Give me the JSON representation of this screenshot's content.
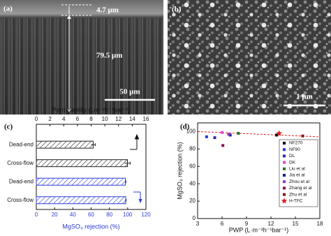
{
  "images": [
    {
      "label": "(a)",
      "annotations": [
        "4.7 μm",
        "79.5 μm",
        "50 μm"
      ]
    },
    {
      "label": "(b)",
      "annotations": [
        "1 μm"
      ]
    }
  ],
  "chart_data": [
    {
      "type": "bar",
      "orientation": "horizontal",
      "panel_label": "(c)",
      "categories": [
        "Dead-end",
        "Cross-flow",
        "Dead-end",
        "Cross-flow"
      ],
      "series": [
        {
          "color": "#222222",
          "axis": "x2",
          "values": [
            8.3,
            13.3,
            null,
            null
          ],
          "errors": [
            0.3,
            0.4,
            null,
            null
          ]
        },
        {
          "color": "#2b3bd6",
          "values": [
            null,
            null,
            97.5,
            97.8
          ],
          "errors": [
            null,
            null,
            0.6,
            0.5
          ]
        }
      ],
      "xlabel": "MgSO₄ rejection (%)",
      "xlabel_color": "#2b3bd6",
      "xlim": [
        0,
        120
      ],
      "xticks": [
        0,
        20,
        40,
        60,
        80,
        100,
        120
      ],
      "x2label": "Permeability (Lm⁻²h⁻¹bar⁻¹)",
      "x2lim": [
        0,
        16
      ],
      "x2ticks": [
        0,
        2,
        4,
        6,
        8,
        10,
        12,
        14,
        16
      ]
    },
    {
      "type": "scatter",
      "panel_label": "(d)",
      "xlabel": "PWP (L·m⁻²h⁻¹bar⁻¹)",
      "ylabel": "MgSO₄ rejection (%)",
      "xlim": [
        3,
        18
      ],
      "xticks": [
        3,
        6,
        9,
        12,
        15,
        18
      ],
      "ylim": [
        0,
        110
      ],
      "yticks": [
        0,
        20,
        40,
        60,
        80,
        100
      ],
      "legend": "right",
      "series": [
        {
          "name": "NF270",
          "color": "#000000",
          "marker": "square",
          "x": [
            12.7
          ],
          "values": [
            96
          ]
        },
        {
          "name": "NF90",
          "color": "#1f3fe0",
          "marker": "square",
          "x": [
            4.1
          ],
          "values": [
            94
          ]
        },
        {
          "name": "DL",
          "color": "#2a2aa8",
          "marker": "square",
          "x": [
            5.1
          ],
          "values": [
            93
          ]
        },
        {
          "name": "DK",
          "color": "#e040e0",
          "marker": "square",
          "x": [
            6.0
          ],
          "values": [
            99
          ]
        },
        {
          "name": "Liu et al",
          "color": "#1a7a2a",
          "marker": "square",
          "x": [
            8.0
          ],
          "values": [
            98
          ]
        },
        {
          "name": "Jia et al",
          "color": "#14208a",
          "marker": "square",
          "x": [
            7.0
          ],
          "values": [
            96
          ]
        },
        {
          "name": "Zhou et al",
          "color": "#9a30c8",
          "marker": "square",
          "x": [
            6.8
          ],
          "values": [
            97
          ]
        },
        {
          "name": "Zhang et al",
          "color": "#8a1050",
          "marker": "square",
          "x": [
            6.1
          ],
          "values": [
            84
          ]
        },
        {
          "name": "Zhu et al",
          "color": "#7a1a10",
          "marker": "square",
          "x": [
            15.9
          ],
          "values": [
            95
          ]
        },
        {
          "name": "H-TFC",
          "color": "#e02020",
          "marker": "star",
          "x": [
            13.0
          ],
          "values": [
            98
          ]
        }
      ],
      "trendline": {
        "color": "#e02020",
        "x": [
          3,
          18
        ],
        "values": [
          100,
          94
        ]
      }
    }
  ]
}
